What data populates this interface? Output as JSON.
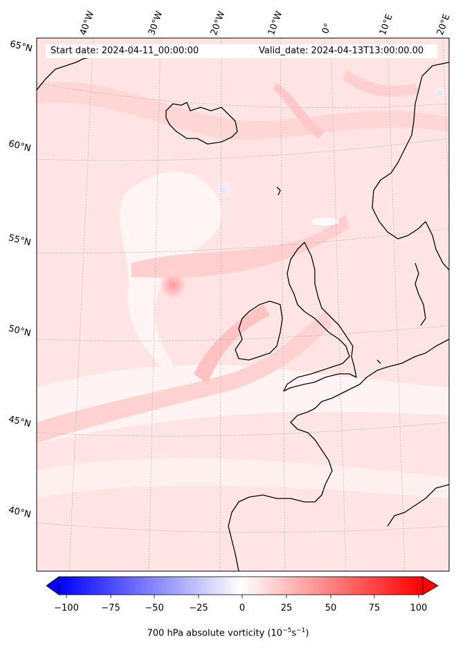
{
  "header": {
    "start_date": "Start date: 2024-04-11_00:00:00",
    "valid_date": "Valid_date: 2024-04-13T13:00:00.00"
  },
  "longitude_labels": [
    "40°W",
    "30°W",
    "20°W",
    "10°W",
    "0°",
    "10°E",
    "20°E"
  ],
  "latitude_labels": [
    "65°N",
    "60°N",
    "55°N",
    "50°N",
    "45°N",
    "40°N"
  ],
  "colorbar": {
    "title_prefix": "700 hPa absolute vorticity (10",
    "title_exp1": "−5",
    "title_mid": "s",
    "title_exp2": "−1",
    "title_suffix": ")",
    "tick_labels": [
      "−100",
      "−75",
      "−50",
      "−25",
      "0",
      "25",
      "50",
      "75",
      "100"
    ],
    "min": -100,
    "max": 100,
    "low_color": "#0000ff",
    "zero_color": "#ffffff",
    "high_color": "#ff0000",
    "extend": "both"
  },
  "colors": {
    "background_field": "#ffe4e4",
    "coastline": "#000000",
    "gridline": "#b0b0b0"
  }
}
